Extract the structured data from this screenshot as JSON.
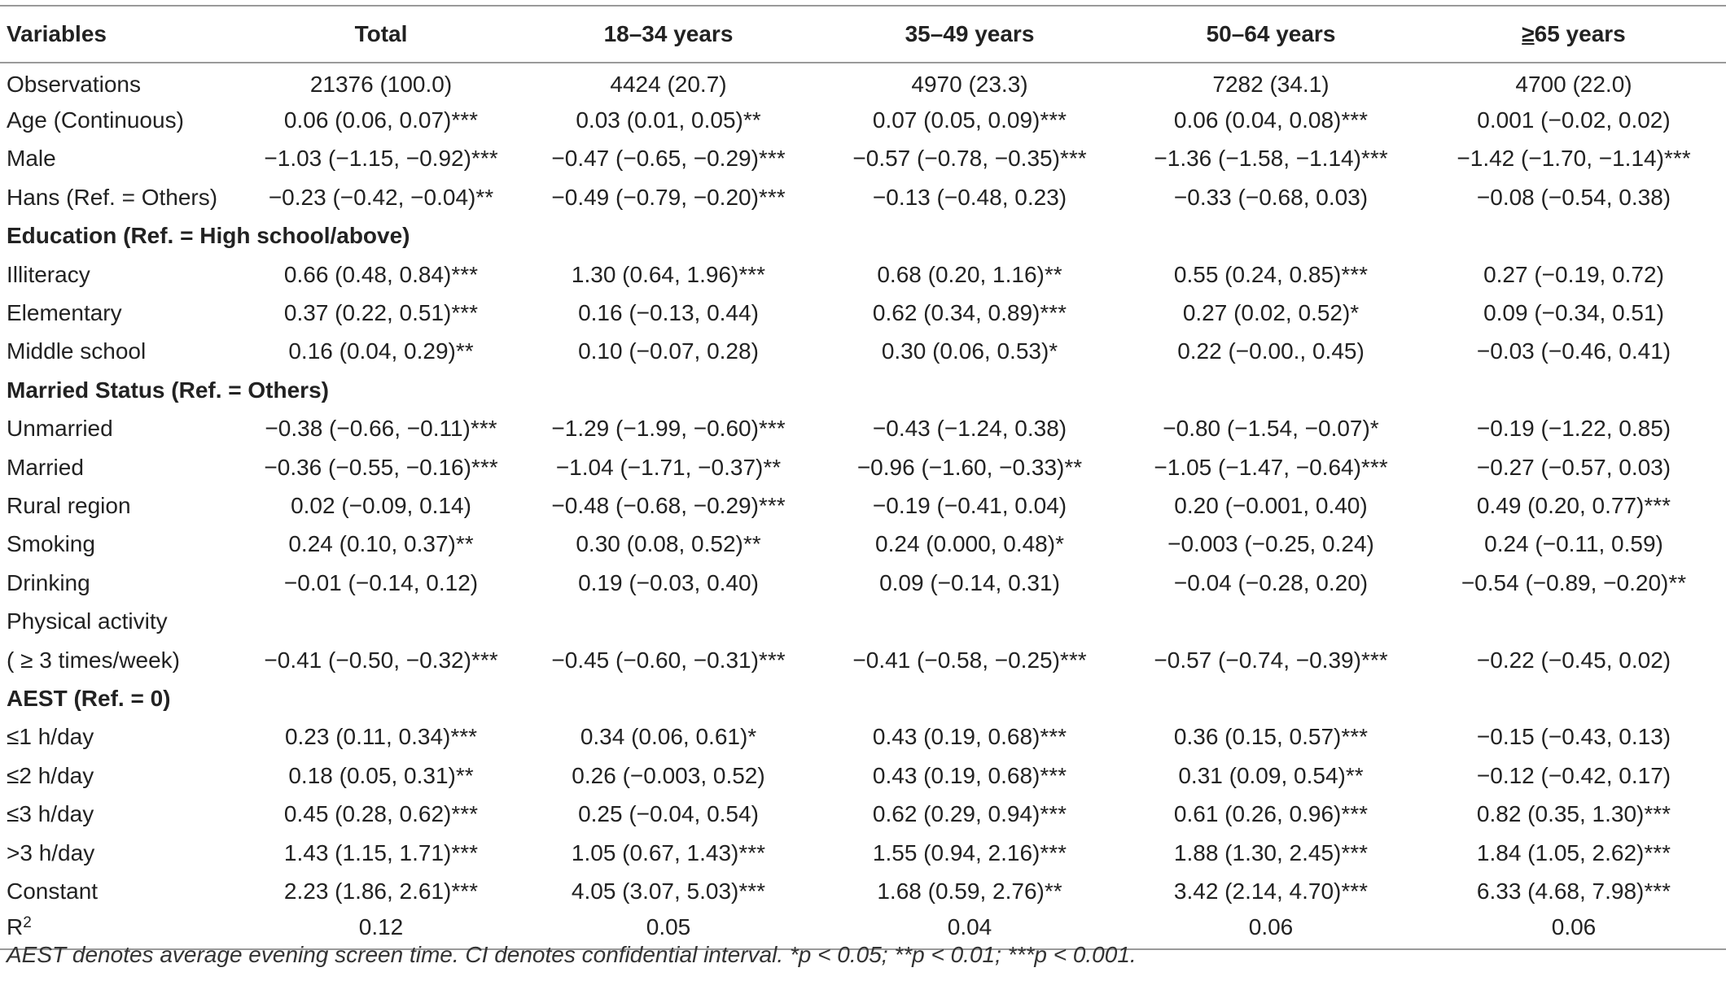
{
  "table": {
    "headers": {
      "variables": "Variables",
      "total": "Total",
      "age_18_34": "18–34 years",
      "age_35_49": "35–49 years",
      "age_50_64": "50–64 years",
      "age_65_symbol": "≥",
      "age_65_rest": "65 years"
    },
    "rows": [
      {
        "label": "Observations",
        "total": "21376 (100.0)",
        "a": "4424 (20.7)",
        "b": "4970 (23.3)",
        "c": "7282 (34.1)",
        "d": "4700 (22.0)"
      },
      {
        "label": "Age (Continuous)",
        "total": "0.06 (0.06, 0.07)***",
        "a": "0.03 (0.01, 0.05)**",
        "b": "0.07 (0.05, 0.09)***",
        "c": "0.06 (0.04, 0.08)***",
        "d": "0.001 (−0.02, 0.02)"
      },
      {
        "label": "Male",
        "total": "−1.03 (−1.15, −0.92)***",
        "a": "−0.47 (−0.65, −0.29)***",
        "b": "−0.57 (−0.78, −0.35)***",
        "c": "−1.36 (−1.58, −1.14)***",
        "d": "−1.42 (−1.70, −1.14)***"
      },
      {
        "label": "Hans (Ref. =  Others)",
        "total": "−0.23 (−0.42, −0.04)**",
        "a": "−0.49 (−0.79, −0.20)***",
        "b": "−0.13 (−0.48, 0.23)",
        "c": "−0.33 (−0.68, 0.03)",
        "d": "−0.08 (−0.54, 0.38)"
      },
      {
        "label": "Education (Ref. =  High school/above)",
        "section": true
      },
      {
        "label": "Illiteracy",
        "total": "0.66 (0.48, 0.84)***",
        "a": "1.30 (0.64, 1.96)***",
        "b": "0.68 (0.20, 1.16)**",
        "c": "0.55 (0.24, 0.85)***",
        "d": "0.27 (−0.19, 0.72)"
      },
      {
        "label": "Elementary",
        "total": "0.37 (0.22, 0.51)***",
        "a": "0.16 (−0.13, 0.44)",
        "b": "0.62 (0.34, 0.89)***",
        "c": "0.27 (0.02, 0.52)*",
        "d": "0.09 (−0.34, 0.51)"
      },
      {
        "label": "Middle school",
        "total": "0.16 (0.04, 0.29)**",
        "a": "0.10 (−0.07, 0.28)",
        "b": "0.30 (0.06, 0.53)*",
        "c": "0.22 (−0.00., 0.45)",
        "d": "−0.03 (−0.46, 0.41)"
      },
      {
        "label": "Married Status (Ref. =  Others)",
        "section": true
      },
      {
        "label": "Unmarried",
        "total": "−0.38 (−0.66, −0.11)***",
        "a": "−1.29 (−1.99, −0.60)***",
        "b": "−0.43 (−1.24, 0.38)",
        "c": "−0.80 (−1.54, −0.07)*",
        "d": "−0.19 (−1.22, 0.85)"
      },
      {
        "label": "Married",
        "total": "−0.36 (−0.55, −0.16)***",
        "a": "−1.04 (−1.71, −0.37)**",
        "b": "−0.96 (−1.60, −0.33)**",
        "c": "−1.05 (−1.47, −0.64)***",
        "d": "−0.27 (−0.57, 0.03)"
      },
      {
        "label": "Rural region",
        "total": "0.02 (−0.09, 0.14)",
        "a": "−0.48 (−0.68, −0.29)***",
        "b": "−0.19 (−0.41, 0.04)",
        "c": "0.20 (−0.001, 0.40)",
        "d": "0.49 (0.20, 0.77)***"
      },
      {
        "label": "Smoking",
        "total": "0.24 (0.10, 0.37)**",
        "a": "0.30 (0.08, 0.52)**",
        "b": "0.24 (0.000, 0.48)*",
        "c": "−0.003 (−0.25, 0.24)",
        "d": "0.24 (−0.11, 0.59)"
      },
      {
        "label": "Drinking",
        "total": "−0.01 (−0.14, 0.12)",
        "a": "0.19 (−0.03, 0.40)",
        "b": "0.09 (−0.14, 0.31)",
        "c": "−0.04 (−0.28, 0.20)",
        "d": "−0.54 (−0.89, −0.20)**"
      },
      {
        "label": "Physical activity",
        "total": "",
        "a": "",
        "b": "",
        "c": "",
        "d": ""
      },
      {
        "label": "( ≥ 3 times/week)",
        "total": "−0.41 (−0.50, −0.32)***",
        "a": "−0.45 (−0.60, −0.31)***",
        "b": "−0.41 (−0.58, −0.25)***",
        "c": "−0.57 (−0.74, −0.39)***",
        "d": "−0.22 (−0.45, 0.02)"
      },
      {
        "label": "AEST (Ref. = 0)",
        "section": true
      },
      {
        "label": "≤1 h/day",
        "total": "0.23 (0.11, 0.34)***",
        "a": "0.34 (0.06, 0.61)*",
        "b": "0.43 (0.19, 0.68)***",
        "c": "0.36 (0.15, 0.57)***",
        "d": "−0.15 (−0.43, 0.13)"
      },
      {
        "label": "≤2 h/day",
        "total": "0.18 (0.05, 0.31)**",
        "a": "0.26 (−0.003, 0.52)",
        "b": "0.43 (0.19, 0.68)***",
        "c": "0.31 (0.09, 0.54)**",
        "d": "−0.12 (−0.42, 0.17)"
      },
      {
        "label": "≤3 h/day",
        "total": "0.45 (0.28, 0.62)***",
        "a": "0.25 (−0.04, 0.54)",
        "b": "0.62 (0.29, 0.94)***",
        "c": "0.61 (0.26, 0.96)***",
        "d": "0.82 (0.35, 1.30)***"
      },
      {
        "label": ">3 h/day",
        "total": "1.43 (1.15, 1.71)***",
        "a": "1.05 (0.67, 1.43)***",
        "b": "1.55 (0.94, 2.16)***",
        "c": "1.88 (1.30, 2.45)***",
        "d": "1.84 (1.05, 2.62)***"
      },
      {
        "label": "Constant",
        "total": "2.23 (1.86, 2.61)***",
        "a": "4.05 (3.07, 5.03)***",
        "b": "1.68 (0.59, 2.76)**",
        "c": "3.42 (2.14, 4.70)***",
        "d": "6.33 (4.68, 7.98)***"
      },
      {
        "label": "R",
        "label_sup": "2",
        "total": "0.12",
        "a": "0.05",
        "b": "0.04",
        "c": "0.06",
        "d": "0.06"
      }
    ]
  },
  "footnote": "AEST denotes average evening screen time. CI denotes confidential interval. *p < 0.05; **p < 0.01; ***p < 0.001."
}
